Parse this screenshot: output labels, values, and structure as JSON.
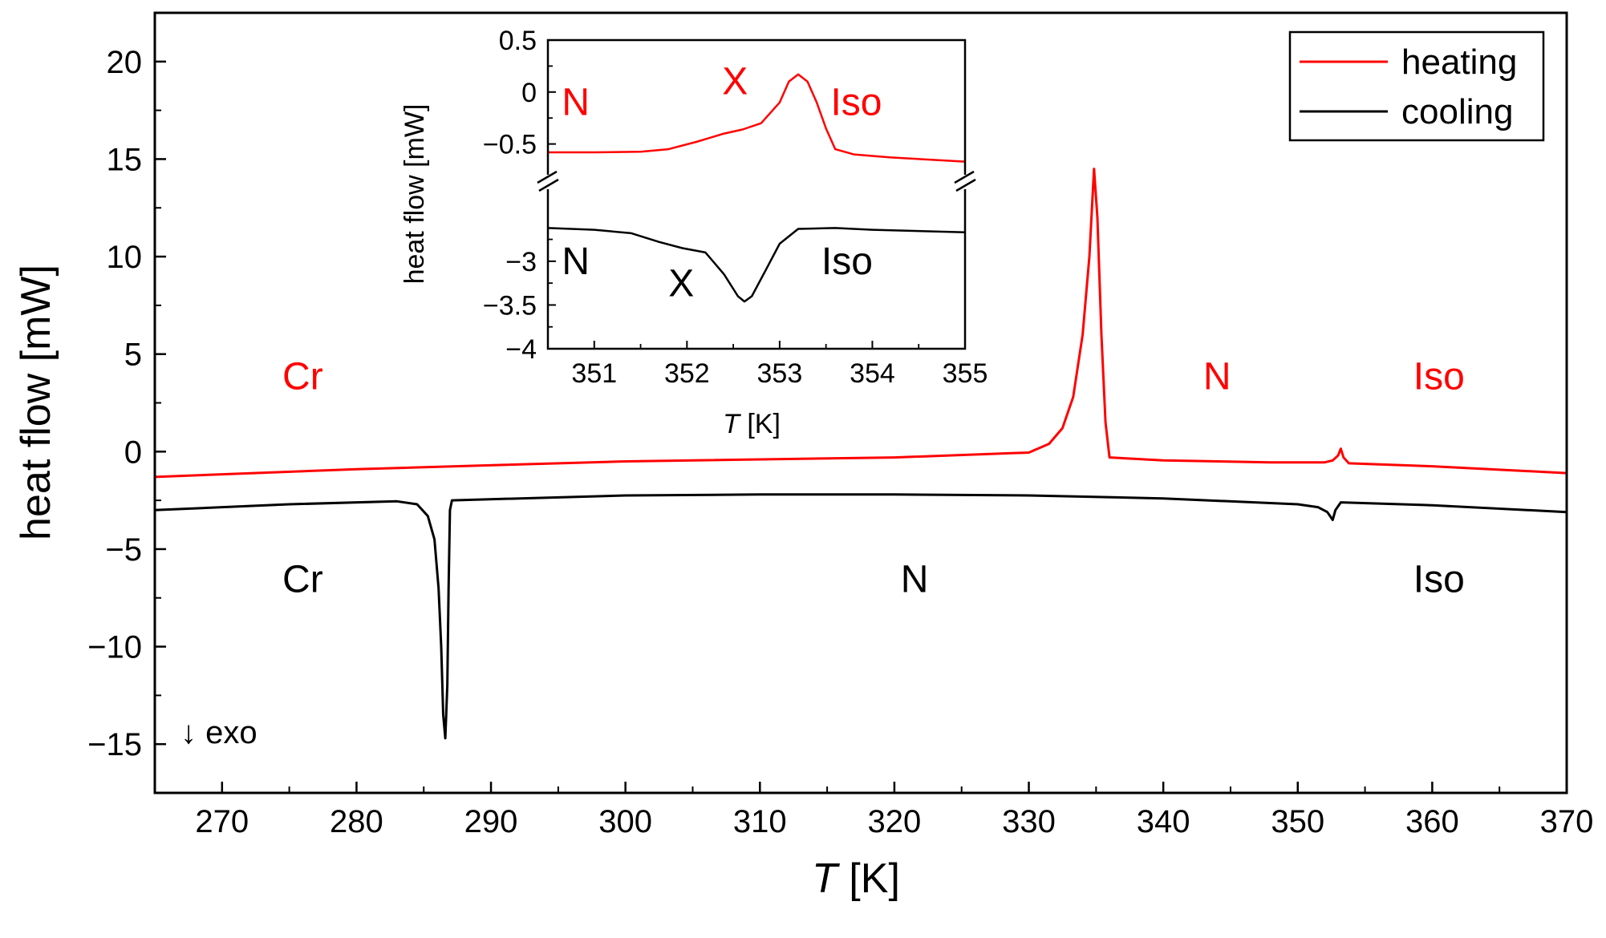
{
  "chart_data": [
    {
      "id": "main",
      "type": "line",
      "xlabel": "T [K]",
      "xlabel_italic": "T",
      "xlabel_rest": " [K]",
      "ylabel": "heat flow [mW]",
      "xlim": [
        265,
        370
      ],
      "ylim": [
        -17.5,
        22.5
      ],
      "xticks": [
        270,
        280,
        290,
        300,
        310,
        320,
        330,
        340,
        350,
        360,
        370
      ],
      "yticks": [
        -15,
        -10,
        -5,
        0,
        5,
        10,
        15,
        20
      ],
      "ytick_labels": [
        "−15",
        "−10",
        "−5",
        "0",
        "5",
        "10",
        "15",
        "20"
      ],
      "legend": {
        "position": "top-right",
        "entries": [
          {
            "label": "heating",
            "color": "#ff0000"
          },
          {
            "label": "cooling",
            "color": "#000000"
          }
        ]
      },
      "series": [
        {
          "name": "heating",
          "color": "#ff0000",
          "points": [
            [
              265,
              -1.3
            ],
            [
              280,
              -0.9
            ],
            [
              300,
              -0.5
            ],
            [
              320,
              -0.3
            ],
            [
              330,
              -0.05
            ],
            [
              331.5,
              0.4
            ],
            [
              332.5,
              1.2
            ],
            [
              333.3,
              2.8
            ],
            [
              334,
              6
            ],
            [
              334.5,
              10
            ],
            [
              334.85,
              14.5
            ],
            [
              335.1,
              12
            ],
            [
              335.4,
              6
            ],
            [
              335.7,
              1.5
            ],
            [
              336,
              -0.3
            ],
            [
              340,
              -0.45
            ],
            [
              348,
              -0.55
            ],
            [
              352,
              -0.55
            ],
            [
              352.6,
              -0.45
            ],
            [
              353,
              -0.2
            ],
            [
              353.2,
              0.15
            ],
            [
              353.4,
              -0.3
            ],
            [
              353.8,
              -0.6
            ],
            [
              360,
              -0.75
            ],
            [
              370,
              -1.1
            ]
          ]
        },
        {
          "name": "cooling",
          "color": "#000000",
          "points": [
            [
              265,
              -3.0
            ],
            [
              275,
              -2.7
            ],
            [
              283,
              -2.55
            ],
            [
              284.5,
              -2.7
            ],
            [
              285.3,
              -3.3
            ],
            [
              285.8,
              -4.5
            ],
            [
              286.1,
              -7
            ],
            [
              286.3,
              -10
            ],
            [
              286.45,
              -13.5
            ],
            [
              286.6,
              -14.7
            ],
            [
              286.75,
              -12
            ],
            [
              286.85,
              -7
            ],
            [
              286.95,
              -3
            ],
            [
              287.1,
              -2.5
            ],
            [
              300,
              -2.25
            ],
            [
              310,
              -2.2
            ],
            [
              320,
              -2.2
            ],
            [
              330,
              -2.25
            ],
            [
              340,
              -2.4
            ],
            [
              350,
              -2.7
            ],
            [
              351.5,
              -2.85
            ],
            [
              352.2,
              -3.1
            ],
            [
              352.6,
              -3.5
            ],
            [
              352.8,
              -3.0
            ],
            [
              353.2,
              -2.6
            ],
            [
              360,
              -2.75
            ],
            [
              370,
              -3.1
            ]
          ]
        }
      ],
      "annotations": [
        {
          "text": "Cr",
          "x": 276,
          "y": 3.2,
          "color": "#ff0000"
        },
        {
          "text": "N",
          "x": 344,
          "y": 3.2,
          "color": "#ff0000"
        },
        {
          "text": "Iso",
          "x": 360.5,
          "y": 3.2,
          "color": "#ff0000"
        },
        {
          "text": "Cr",
          "x": 276,
          "y": -7.2,
          "color": "#000000"
        },
        {
          "text": "N",
          "x": 321.5,
          "y": -7.2,
          "color": "#000000"
        },
        {
          "text": "Iso",
          "x": 360.5,
          "y": -7.2,
          "color": "#000000"
        }
      ],
      "exo_note": "↓ exo"
    },
    {
      "id": "inset",
      "type": "line",
      "xlabel": "T [K]",
      "xlabel_italic": "T",
      "xlabel_rest": " [K]",
      "ylabel": "heat flow [mW]",
      "xlim": [
        350.5,
        355
      ],
      "ylim_upper": [
        -0.75,
        0.5
      ],
      "ylim_lower": [
        -4,
        -2.25
      ],
      "axis_break": true,
      "xticks": [
        351,
        352,
        353,
        354,
        355
      ],
      "yticks_upper": [
        0.5,
        0,
        -0.5
      ],
      "ytick_upper_labels": [
        "0.5",
        "0",
        "−0.5"
      ],
      "yticks_lower": [
        -3,
        -3.5,
        -4
      ],
      "ytick_lower_labels": [
        "−3",
        "−3.5",
        "−4"
      ],
      "series": [
        {
          "name": "heating",
          "color": "#ff0000",
          "segment": "upper",
          "points": [
            [
              350.5,
              -0.58
            ],
            [
              351,
              -0.58
            ],
            [
              351.5,
              -0.575
            ],
            [
              351.8,
              -0.55
            ],
            [
              352.1,
              -0.48
            ],
            [
              352.4,
              -0.4
            ],
            [
              352.6,
              -0.36
            ],
            [
              352.8,
              -0.3
            ],
            [
              353.0,
              -0.1
            ],
            [
              353.1,
              0.1
            ],
            [
              353.2,
              0.17
            ],
            [
              353.3,
              0.1
            ],
            [
              353.4,
              -0.1
            ],
            [
              353.5,
              -0.35
            ],
            [
              353.6,
              -0.55
            ],
            [
              353.8,
              -0.6
            ],
            [
              354.2,
              -0.63
            ],
            [
              355,
              -0.67
            ]
          ]
        },
        {
          "name": "cooling",
          "color": "#000000",
          "segment": "lower",
          "points": [
            [
              350.5,
              -2.62
            ],
            [
              351,
              -2.64
            ],
            [
              351.4,
              -2.68
            ],
            [
              351.7,
              -2.78
            ],
            [
              351.95,
              -2.85
            ],
            [
              352.2,
              -2.9
            ],
            [
              352.4,
              -3.15
            ],
            [
              352.55,
              -3.4
            ],
            [
              352.62,
              -3.46
            ],
            [
              352.7,
              -3.4
            ],
            [
              352.85,
              -3.1
            ],
            [
              353,
              -2.8
            ],
            [
              353.2,
              -2.63
            ],
            [
              353.6,
              -2.62
            ],
            [
              354,
              -2.64
            ],
            [
              355,
              -2.67
            ]
          ]
        }
      ],
      "annotations": [
        {
          "text": "N",
          "x": 350.65,
          "y": -0.22,
          "segment": "upper",
          "color": "#ff0000"
        },
        {
          "text": "X",
          "x": 352.38,
          "y": -0.02,
          "segment": "upper",
          "color": "#ff0000"
        },
        {
          "text": "Iso",
          "x": 353.55,
          "y": -0.22,
          "segment": "upper",
          "color": "#ff0000"
        },
        {
          "text": "N",
          "x": 350.65,
          "y": -3.15,
          "segment": "lower",
          "color": "#000000"
        },
        {
          "text": "X",
          "x": 351.8,
          "y": -3.4,
          "segment": "lower",
          "color": "#000000"
        },
        {
          "text": "Iso",
          "x": 353.45,
          "y": -3.15,
          "segment": "lower",
          "color": "#000000"
        }
      ]
    }
  ]
}
